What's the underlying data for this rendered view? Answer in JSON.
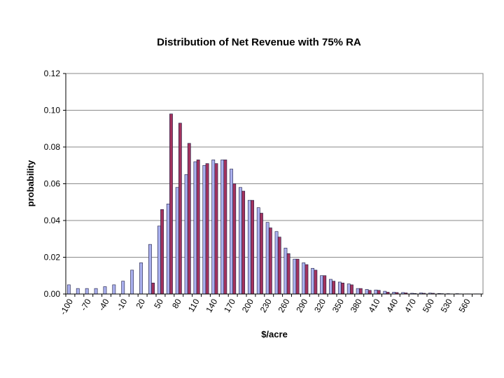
{
  "chart_data": {
    "type": "bar",
    "title": "Distribution of Net Revenue with 75% RA",
    "xlabel": "$/acre",
    "ylabel": "probability",
    "ylim": [
      0,
      0.12
    ],
    "y_ticks": [
      "0.00",
      "0.02",
      "0.04",
      "0.06",
      "0.08",
      "0.10",
      "0.12"
    ],
    "x_tick_labels": [
      "-100",
      "-70",
      "-40",
      "-10",
      "20",
      "50",
      "80",
      "110",
      "140",
      "170",
      "200",
      "230",
      "260",
      "290",
      "320",
      "350",
      "380",
      "410",
      "440",
      "470",
      "500",
      "530",
      "560"
    ],
    "categories": [
      "-100",
      "-85",
      "-70",
      "-55",
      "-40",
      "-25",
      "-10",
      "5",
      "20",
      "35",
      "50",
      "65",
      "80",
      "95",
      "110",
      "125",
      "140",
      "155",
      "170",
      "185",
      "200",
      "215",
      "230",
      "245",
      "260",
      "275",
      "290",
      "305",
      "320",
      "335",
      "350",
      "365",
      "380",
      "395",
      "410",
      "425",
      "440",
      "455",
      "470",
      "485",
      "500",
      "515",
      "530",
      "545",
      "560",
      "575"
    ],
    "series": [
      {
        "color": "#aab0ee",
        "values": [
          0.005,
          0.003,
          0.003,
          0.003,
          0.004,
          0.005,
          0.007,
          0.013,
          0.017,
          0.027,
          0.037,
          0.049,
          0.058,
          0.065,
          0.072,
          0.07,
          0.073,
          0.073,
          0.068,
          0.058,
          0.051,
          0.047,
          0.039,
          0.034,
          0.025,
          0.019,
          0.017,
          0.014,
          0.01,
          0.008,
          0.0065,
          0.0055,
          0.003,
          0.0025,
          0.0022,
          0.0015,
          0.001,
          0.0008,
          0.0004,
          0.0006,
          0.0005,
          0.0003,
          0.0002,
          0.0002,
          0.0001,
          0.0001
        ]
      },
      {
        "color": "#a3335e",
        "values": [
          0,
          0,
          0,
          0,
          0,
          0,
          0,
          0,
          0,
          0.006,
          0.046,
          0.098,
          0.093,
          0.082,
          0.073,
          0.071,
          0.071,
          0.073,
          0.06,
          0.056,
          0.051,
          0.044,
          0.036,
          0.031,
          0.022,
          0.019,
          0.016,
          0.013,
          0.01,
          0.007,
          0.006,
          0.005,
          0.003,
          0.002,
          0.002,
          0.001,
          0.0008,
          0.0006,
          0.0003,
          0.0004,
          0.0004,
          0.0002,
          0.0001,
          0.0001,
          0.0001,
          0.0001
        ]
      }
    ],
    "grid": true,
    "legend": "none"
  }
}
